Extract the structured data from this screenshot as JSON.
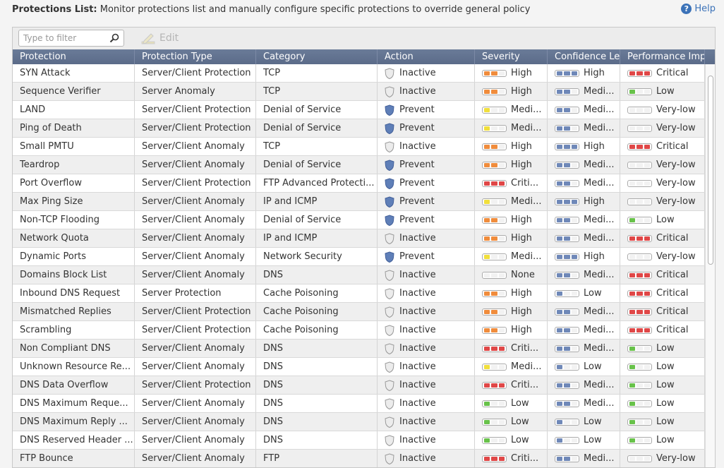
{
  "header": {
    "title_bold": "Protections List:",
    "title_rest": " Monitor protections list and manually configure specific protections to override general policy",
    "help_label": "Help"
  },
  "toolbar": {
    "filter_placeholder": "Type to filter",
    "edit_label": "Edit"
  },
  "columns": [
    "Protection",
    "Protection Type",
    "Category",
    "Action",
    "Severity",
    "Confidence Lev",
    "Performance Impa"
  ],
  "colors": {
    "orange": "#f08c3c",
    "yellow": "#f1df3c",
    "red": "#e04747",
    "green": "#68c24a",
    "blue": "#6f88b8",
    "header": "#5f6f8d"
  },
  "rows": [
    {
      "protection": "SYN Attack",
      "type": "Server/Client Protection",
      "category": "TCP",
      "action": "Inactive",
      "severity": {
        "label": "High",
        "level": "high"
      },
      "confidence": {
        "label": "High",
        "level": "high"
      },
      "performance": {
        "label": "Critical",
        "level": "critical"
      }
    },
    {
      "protection": "Sequence Verifier",
      "type": "Server Anomaly",
      "category": "TCP",
      "action": "Inactive",
      "severity": {
        "label": "High",
        "level": "high"
      },
      "confidence": {
        "label": "Medi...",
        "level": "medium"
      },
      "performance": {
        "label": "Low",
        "level": "low"
      }
    },
    {
      "protection": "LAND",
      "type": "Server/Client Protection",
      "category": "Denial of Service",
      "action": "Prevent",
      "severity": {
        "label": "Medi...",
        "level": "medium"
      },
      "confidence": {
        "label": "Medi...",
        "level": "medium"
      },
      "performance": {
        "label": "Very-low",
        "level": "verylow"
      }
    },
    {
      "protection": "Ping of Death",
      "type": "Server/Client Protection",
      "category": "Denial of Service",
      "action": "Prevent",
      "severity": {
        "label": "Medi...",
        "level": "medium"
      },
      "confidence": {
        "label": "Medi...",
        "level": "medium"
      },
      "performance": {
        "label": "Very-low",
        "level": "verylow"
      }
    },
    {
      "protection": "Small PMTU",
      "type": "Server/Client Anomaly",
      "category": "TCP",
      "action": "Inactive",
      "severity": {
        "label": "High",
        "level": "high"
      },
      "confidence": {
        "label": "High",
        "level": "high"
      },
      "performance": {
        "label": "Critical",
        "level": "critical"
      }
    },
    {
      "protection": "Teardrop",
      "type": "Server/Client Anomaly",
      "category": "Denial of Service",
      "action": "Prevent",
      "severity": {
        "label": "High",
        "level": "high"
      },
      "confidence": {
        "label": "Medi...",
        "level": "medium"
      },
      "performance": {
        "label": "Very-low",
        "level": "verylow"
      }
    },
    {
      "protection": "Port Overflow",
      "type": "Server/Client Protection",
      "category": "FTP Advanced Protecti...",
      "action": "Prevent",
      "severity": {
        "label": "Criti...",
        "level": "critical"
      },
      "confidence": {
        "label": "Medi...",
        "level": "medium"
      },
      "performance": {
        "label": "Very-low",
        "level": "verylow"
      }
    },
    {
      "protection": "Max Ping Size",
      "type": "Server/Client Anomaly",
      "category": "IP and ICMP",
      "action": "Prevent",
      "severity": {
        "label": "Medi...",
        "level": "medium"
      },
      "confidence": {
        "label": "High",
        "level": "high"
      },
      "performance": {
        "label": "Very-low",
        "level": "verylow"
      }
    },
    {
      "protection": "Non-TCP Flooding",
      "type": "Server/Client Anomaly",
      "category": "Denial of Service",
      "action": "Prevent",
      "severity": {
        "label": "High",
        "level": "high"
      },
      "confidence": {
        "label": "Medi...",
        "level": "medium"
      },
      "performance": {
        "label": "Low",
        "level": "low"
      }
    },
    {
      "protection": "Network Quota",
      "type": "Server/Client Anomaly",
      "category": "IP and ICMP",
      "action": "Inactive",
      "severity": {
        "label": "High",
        "level": "high"
      },
      "confidence": {
        "label": "Medi...",
        "level": "medium"
      },
      "performance": {
        "label": "Critical",
        "level": "critical"
      }
    },
    {
      "protection": "Dynamic Ports",
      "type": "Server/Client Anomaly",
      "category": "Network Security",
      "action": "Prevent",
      "severity": {
        "label": "Medi...",
        "level": "medium"
      },
      "confidence": {
        "label": "High",
        "level": "high"
      },
      "performance": {
        "label": "Very-low",
        "level": "verylow"
      }
    },
    {
      "protection": "Domains Block List",
      "type": "Server/Client Anomaly",
      "category": "DNS",
      "action": "Inactive",
      "severity": {
        "label": "None",
        "level": "none"
      },
      "confidence": {
        "label": "Medi...",
        "level": "medium"
      },
      "performance": {
        "label": "Critical",
        "level": "critical"
      }
    },
    {
      "protection": "Inbound DNS Request",
      "type": "Server Protection",
      "category": "Cache Poisoning",
      "action": "Inactive",
      "severity": {
        "label": "High",
        "level": "high"
      },
      "confidence": {
        "label": "Low",
        "level": "low"
      },
      "performance": {
        "label": "Critical",
        "level": "critical"
      }
    },
    {
      "protection": "Mismatched Replies",
      "type": "Server/Client Protection",
      "category": "Cache Poisoning",
      "action": "Inactive",
      "severity": {
        "label": "High",
        "level": "high"
      },
      "confidence": {
        "label": "Medi...",
        "level": "medium"
      },
      "performance": {
        "label": "Critical",
        "level": "critical"
      }
    },
    {
      "protection": "Scrambling",
      "type": "Server/Client Protection",
      "category": "Cache Poisoning",
      "action": "Inactive",
      "severity": {
        "label": "High",
        "level": "high"
      },
      "confidence": {
        "label": "Medi...",
        "level": "medium"
      },
      "performance": {
        "label": "Critical",
        "level": "critical"
      }
    },
    {
      "protection": "Non Compliant DNS",
      "type": "Server/Client Anomaly",
      "category": "DNS",
      "action": "Inactive",
      "severity": {
        "label": "Criti...",
        "level": "critical"
      },
      "confidence": {
        "label": "Medi...",
        "level": "medium"
      },
      "performance": {
        "label": "Low",
        "level": "low"
      }
    },
    {
      "protection": "Unknown Resource Re...",
      "type": "Server/Client Anomaly",
      "category": "DNS",
      "action": "Inactive",
      "severity": {
        "label": "Medi...",
        "level": "medium"
      },
      "confidence": {
        "label": "Low",
        "level": "low"
      },
      "performance": {
        "label": "Low",
        "level": "low"
      }
    },
    {
      "protection": "DNS Data Overflow",
      "type": "Server/Client Protection",
      "category": "DNS",
      "action": "Inactive",
      "severity": {
        "label": "Criti...",
        "level": "critical"
      },
      "confidence": {
        "label": "Medi...",
        "level": "medium"
      },
      "performance": {
        "label": "Low",
        "level": "low"
      }
    },
    {
      "protection": "DNS Maximum Reque...",
      "type": "Server/Client Anomaly",
      "category": "DNS",
      "action": "Inactive",
      "severity": {
        "label": "Low",
        "level": "low"
      },
      "confidence": {
        "label": "Medi...",
        "level": "medium"
      },
      "performance": {
        "label": "Low",
        "level": "low"
      }
    },
    {
      "protection": "DNS Maximum Reply ...",
      "type": "Server/Client Anomaly",
      "category": "DNS",
      "action": "Inactive",
      "severity": {
        "label": "Low",
        "level": "low"
      },
      "confidence": {
        "label": "Low",
        "level": "low"
      },
      "performance": {
        "label": "Low",
        "level": "low"
      }
    },
    {
      "protection": "DNS Reserved Header ...",
      "type": "Server/Client Anomaly",
      "category": "DNS",
      "action": "Inactive",
      "severity": {
        "label": "Low",
        "level": "low"
      },
      "confidence": {
        "label": "Low",
        "level": "low"
      },
      "performance": {
        "label": "Low",
        "level": "low"
      }
    },
    {
      "protection": "FTP Bounce",
      "type": "Server/Client Anomaly",
      "category": "FTP",
      "action": "Inactive",
      "severity": {
        "label": "Criti...",
        "level": "critical"
      },
      "confidence": {
        "label": "Medi...",
        "level": "medium"
      },
      "performance": {
        "label": "Very-low",
        "level": "verylow"
      }
    }
  ]
}
